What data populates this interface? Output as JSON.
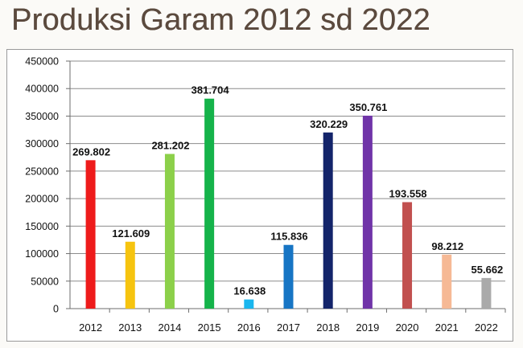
{
  "page": {
    "title": "Produksi Garam 2012 sd 2022"
  },
  "chart_data": {
    "type": "bar",
    "title": "",
    "xlabel": "",
    "ylabel": "",
    "categories": [
      "2012",
      "2013",
      "2014",
      "2015",
      "2016",
      "2017",
      "2018",
      "2019",
      "2020",
      "2021",
      "2022"
    ],
    "values": [
      269802,
      121609,
      281202,
      381704,
      16638,
      115836,
      320229,
      350761,
      193558,
      98212,
      55662
    ],
    "data_labels": [
      "269.802",
      "121.609",
      "281.202",
      "381.704",
      "16.638",
      "115.836",
      "320.229",
      "350.761",
      "193.558",
      "98.212",
      "55.662"
    ],
    "colors": [
      "#ee1b1b",
      "#f6c40f",
      "#8cd04a",
      "#15b34a",
      "#1ab6ee",
      "#1775c4",
      "#13246a",
      "#7034a8",
      "#c1504f",
      "#f6b995",
      "#aaaaaa"
    ],
    "ylim": [
      0,
      450000
    ],
    "yticks": [
      "0",
      "50000",
      "100000",
      "150000",
      "200000",
      "250000",
      "300000",
      "350000",
      "400000",
      "450000"
    ],
    "grid": true,
    "legend": "none"
  }
}
